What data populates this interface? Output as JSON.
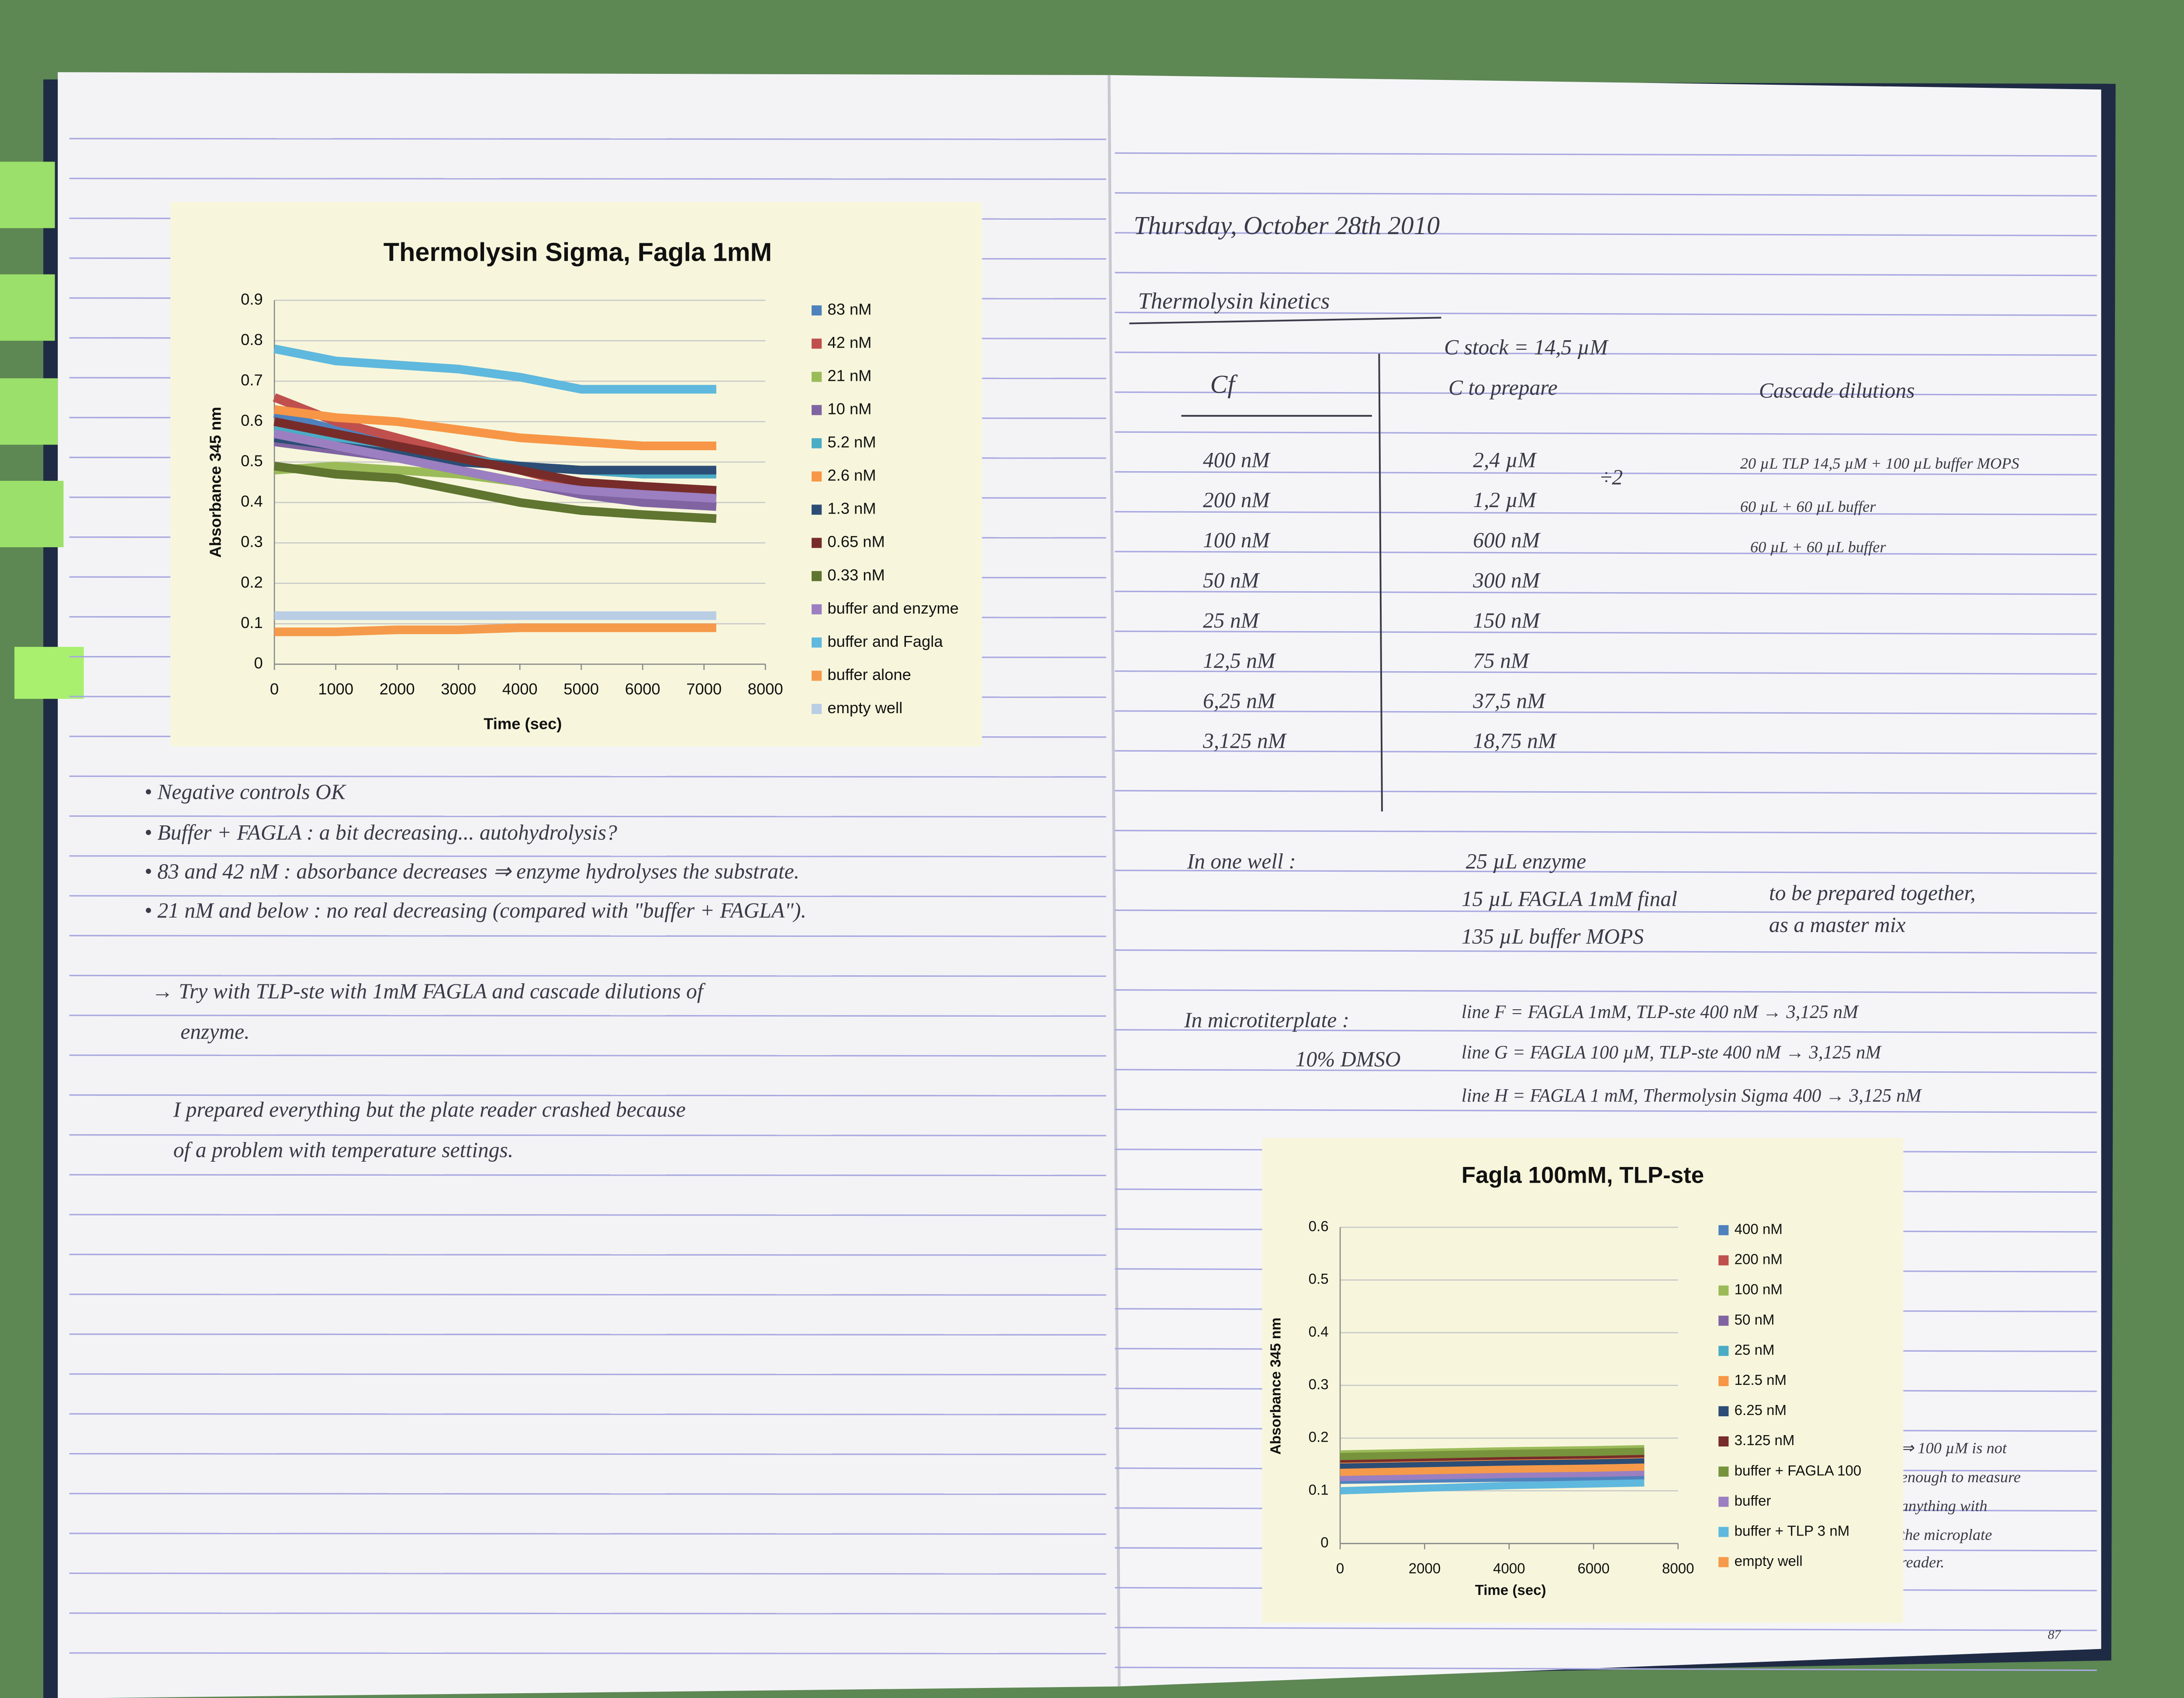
{
  "left_page": {
    "notes": [
      "• Negative controls OK",
      "• Buffer + FAGLA : a bit decreasing... autohydrolysis?",
      "• 83 and 42 nM : absorbance decreases ⇒ enzyme hydrolyses the substrate.",
      "• 21 nM and below : no real decreasing (compared with \"buffer + FAGLA\").",
      "→ Try with TLP-ste with 1mM FAGLA and cascade dilutions of",
      "enzyme.",
      "I prepared everything but the plate reader crashed because",
      "of a problem with temperature settings."
    ]
  },
  "right_page": {
    "date": "Thursday, October 28th 2010",
    "heading": "Thermolysin kinetics",
    "stock": "C stock = 14,5 µM",
    "table": {
      "headers": [
        "Cf",
        "C to prepare",
        "Cascade dilutions"
      ],
      "rows": [
        [
          "400 nM",
          "2,4 µM"
        ],
        [
          "200 nM",
          "1,2 µM"
        ],
        [
          "100 nM",
          "600 nM"
        ],
        [
          "50 nM",
          "300 nM"
        ],
        [
          "25 nM",
          "150 nM"
        ],
        [
          "12,5 nM",
          "75 nM"
        ],
        [
          "6,25 nM",
          "37,5 nM"
        ],
        [
          "3,125 nM",
          "18,75 nM"
        ]
      ],
      "factor": "÷2",
      "dilutions": [
        "20 µL TLP 14,5 µM + 100 µL buffer MOPS",
        "60 µL + 60 µL buffer",
        "60 µL + 60 µL buffer"
      ]
    },
    "well": {
      "label": "In one well :",
      "lines": [
        "25 µL enzyme",
        "15 µL FAGLA 1mM final",
        "135 µL buffer MOPS"
      ],
      "note": [
        "to be prepared together,",
        "as a master mix"
      ]
    },
    "plate": {
      "label": "In microtiterplate :",
      "dmso": "10% DMSO",
      "lines": [
        "line F = FAGLA 1mM, TLP-ste 400 nM → 3,125 nM",
        "line G = FAGLA 100 µM, TLP-ste 400 nM → 3,125 nM",
        "line H = FAGLA 1 mM, Thermolysin Sigma 400 → 3,125 nM"
      ]
    },
    "chart_note": [
      "⇒ 100 µM is not",
      "enough to measure",
      "anything with",
      "the microplate",
      "reader."
    ],
    "page_number": "87"
  },
  "chart_data": [
    {
      "type": "line",
      "title": "Thermolysin Sigma, Fagla 1mM",
      "x_label": "Time (sec)",
      "y_label": "Absorbance 345 nm",
      "x": [
        0,
        1000,
        2000,
        3000,
        4000,
        5000,
        6000,
        7200
      ],
      "xlim": [
        0,
        8000
      ],
      "xticks": [
        0,
        1000,
        2000,
        3000,
        4000,
        5000,
        6000,
        7000,
        8000
      ],
      "ylim": [
        0,
        0.9
      ],
      "yticks": [
        0,
        0.1,
        0.2,
        0.3,
        0.4,
        0.5,
        0.6,
        0.7,
        0.8,
        0.9
      ],
      "grid": true,
      "series": [
        {
          "name": "83 nM",
          "color": "#4f81bd",
          "values": [
            0.62,
            0.58,
            0.55,
            0.52,
            0.48,
            0.44,
            0.42,
            0.41
          ]
        },
        {
          "name": "42 nM",
          "color": "#c0504d",
          "values": [
            0.66,
            0.6,
            0.56,
            0.52,
            0.48,
            0.44,
            0.42,
            0.41
          ]
        },
        {
          "name": "21 nM",
          "color": "#9bbb59",
          "values": [
            0.48,
            0.49,
            0.48,
            0.47,
            0.45,
            0.43,
            0.43,
            0.43
          ]
        },
        {
          "name": "10 nM",
          "color": "#8064a2",
          "values": [
            0.55,
            0.53,
            0.51,
            0.48,
            0.45,
            0.42,
            0.4,
            0.39
          ]
        },
        {
          "name": "5.2 nM",
          "color": "#4bacc6",
          "values": [
            0.58,
            0.56,
            0.53,
            0.51,
            0.49,
            0.48,
            0.47,
            0.47
          ]
        },
        {
          "name": "2.6 nM",
          "color": "#f79646",
          "values": [
            0.63,
            0.61,
            0.6,
            0.58,
            0.56,
            0.55,
            0.54,
            0.54
          ]
        },
        {
          "name": "1.3 nM",
          "color": "#2c4d75",
          "values": [
            0.56,
            0.54,
            0.52,
            0.5,
            0.49,
            0.48,
            0.48,
            0.48
          ]
        },
        {
          "name": "0.65 nM",
          "color": "#772c2a",
          "values": [
            0.6,
            0.57,
            0.54,
            0.51,
            0.48,
            0.45,
            0.44,
            0.43
          ]
        },
        {
          "name": "0.33 nM",
          "color": "#5f7530",
          "values": [
            0.49,
            0.47,
            0.46,
            0.43,
            0.4,
            0.38,
            0.37,
            0.36
          ]
        },
        {
          "name": "buffer and enzyme",
          "color": "#9b7fc0",
          "values": [
            0.57,
            0.54,
            0.51,
            0.48,
            0.45,
            0.43,
            0.42,
            0.41
          ]
        },
        {
          "name": "buffer and Fagla",
          "color": "#5fb8dd",
          "values": [
            0.78,
            0.75,
            0.74,
            0.73,
            0.71,
            0.68,
            0.68,
            0.68
          ]
        },
        {
          "name": "buffer alone",
          "color": "#f59a4a",
          "values": [
            0.08,
            0.08,
            0.085,
            0.085,
            0.09,
            0.09,
            0.09,
            0.09
          ]
        },
        {
          "name": "empty well",
          "color": "#b9cde5",
          "values": [
            0.12,
            0.12,
            0.12,
            0.12,
            0.12,
            0.12,
            0.12,
            0.12
          ]
        }
      ]
    },
    {
      "type": "line",
      "title": "Fagla 100mM, TLP-ste",
      "x_label": "Time (sec)",
      "y_label": "Absorbance 345 nm",
      "x": [
        0,
        2000,
        4000,
        6000,
        7200
      ],
      "xlim": [
        0,
        8000
      ],
      "xticks": [
        0,
        2000,
        4000,
        6000,
        8000
      ],
      "ylim": [
        0,
        0.6
      ],
      "yticks": [
        0,
        0.1,
        0.2,
        0.3,
        0.4,
        0.5,
        0.6
      ],
      "grid": true,
      "series": [
        {
          "name": "400 nM",
          "color": "#4f81bd",
          "values": [
            0.12,
            0.122,
            0.124,
            0.126,
            0.127
          ]
        },
        {
          "name": "200 nM",
          "color": "#c0504d",
          "values": [
            0.15,
            0.153,
            0.156,
            0.158,
            0.16
          ]
        },
        {
          "name": "100 nM",
          "color": "#9bbb59",
          "values": [
            0.17,
            0.173,
            0.176,
            0.178,
            0.18
          ]
        },
        {
          "name": "50 nM",
          "color": "#8064a2",
          "values": [
            0.14,
            0.143,
            0.146,
            0.148,
            0.15
          ]
        },
        {
          "name": "25 nM",
          "color": "#4bacc6",
          "values": [
            0.13,
            0.133,
            0.136,
            0.138,
            0.14
          ]
        },
        {
          "name": "12.5 nM",
          "color": "#f79646",
          "values": [
            0.155,
            0.158,
            0.161,
            0.163,
            0.165
          ]
        },
        {
          "name": "6.25 nM",
          "color": "#2c4d75",
          "values": [
            0.145,
            0.148,
            0.151,
            0.153,
            0.155
          ]
        },
        {
          "name": "3.125 nM",
          "color": "#772c2a",
          "values": [
            0.16,
            0.163,
            0.166,
            0.168,
            0.17
          ]
        },
        {
          "name": "buffer + FAGLA 100",
          "color": "#77933c",
          "values": [
            0.165,
            0.168,
            0.171,
            0.173,
            0.175
          ]
        },
        {
          "name": "buffer",
          "color": "#9b7fc0",
          "values": [
            0.125,
            0.128,
            0.131,
            0.133,
            0.135
          ]
        },
        {
          "name": "buffer + TLP 3 nM",
          "color": "#5fb8dd",
          "values": [
            0.1,
            0.105,
            0.11,
            0.113,
            0.115
          ]
        },
        {
          "name": "empty well",
          "color": "#f59a4a",
          "values": [
            0.135,
            0.138,
            0.141,
            0.143,
            0.145
          ]
        }
      ]
    }
  ]
}
